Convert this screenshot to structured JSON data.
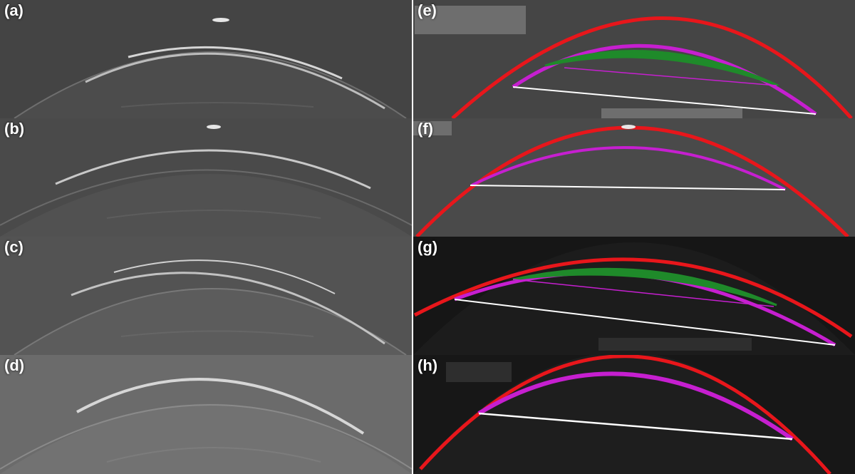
{
  "figure": {
    "panels": [
      {
        "id": "a",
        "label": "(a)"
      },
      {
        "id": "b",
        "label": "(b)"
      },
      {
        "id": "c",
        "label": "(c)"
      },
      {
        "id": "d",
        "label": "(d)"
      },
      {
        "id": "e",
        "label": "(e)"
      },
      {
        "id": "f",
        "label": "(f)"
      },
      {
        "id": "g",
        "label": "(g)"
      },
      {
        "id": "h",
        "label": "(h)"
      }
    ],
    "colors": {
      "outer_boundary": "#e8161b",
      "inner_boundary": "#c61fd0",
      "lens_region": "#1f8a2a",
      "baseline_chord": "#ffffff"
    }
  }
}
